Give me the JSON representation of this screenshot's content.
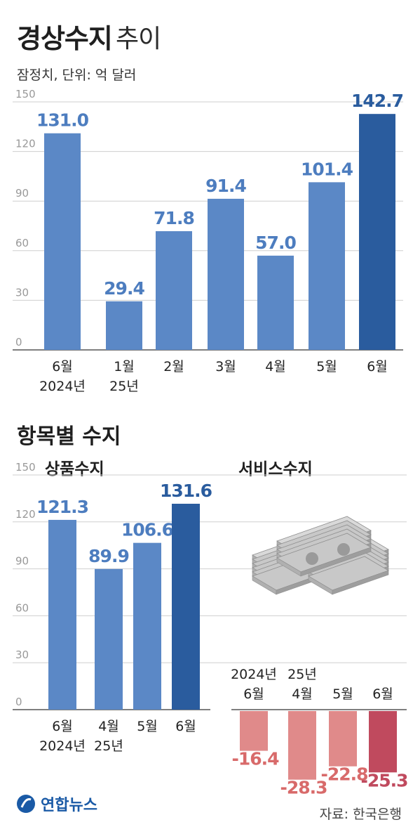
{
  "header": {
    "title": "경상수지",
    "title_suffix": "추이",
    "subtitle": "잠정치, 단위: 억 달러"
  },
  "section2": {
    "title": "항목별 수지",
    "goods_title": "상품수지",
    "service_title": "서비스수지"
  },
  "footer": {
    "logo": "연합뉴스",
    "source": "자료: 한국은행"
  },
  "colors": {
    "bar": "#5b88c6",
    "bar_highlight": "#2a5c9e",
    "label": "#4d7dbf",
    "label_highlight": "#2a5c9e",
    "neg_bar": "#e08a8a",
    "neg_bar_highlight": "#c04a5e",
    "neg_label": "#d86a6a",
    "neg_label_highlight": "#c04a5e",
    "grid": "#cfcfcf",
    "axis_text": "#999999"
  },
  "chart_data": [
    {
      "type": "bar",
      "title": "경상수지 추이",
      "subtitle": "잠정치, 단위: 억 달러",
      "categories": [
        [
          "6월",
          "2024년"
        ],
        [
          "1월",
          "25년"
        ],
        [
          "2월"
        ],
        [
          "3월"
        ],
        [
          "4월"
        ],
        [
          "5월"
        ],
        [
          "6월"
        ]
      ],
      "values": [
        131.0,
        29.4,
        71.8,
        91.4,
        57.0,
        101.4,
        142.7
      ],
      "value_labels": [
        "131.0",
        "29.4",
        "71.8",
        "91.4",
        "57.0",
        "101.4",
        "142.7"
      ],
      "highlight_index": 6,
      "ylim": [
        0,
        150
      ],
      "yticks": [
        "0",
        "30",
        "60",
        "90",
        "120",
        "150"
      ],
      "grid": true
    },
    {
      "type": "bar",
      "title": "상품수지",
      "categories": [
        [
          "6월",
          "2024년"
        ],
        [
          "4월",
          "25년"
        ],
        [
          "5월"
        ],
        [
          "6월"
        ]
      ],
      "values": [
        121.3,
        89.9,
        106.6,
        131.6
      ],
      "value_labels": [
        "121.3",
        "89.9",
        "106.6",
        "131.6"
      ],
      "highlight_index": 3,
      "ylim": [
        0,
        150
      ],
      "yticks": [
        "0",
        "30",
        "60",
        "90",
        "120",
        "150"
      ],
      "grid": true
    },
    {
      "type": "bar",
      "title": "서비스수지",
      "categories": [
        [
          "2024년",
          "6월"
        ],
        [
          "25년",
          "4월"
        ],
        [
          "5월"
        ],
        [
          "6월"
        ]
      ],
      "values": [
        -16.4,
        -28.3,
        -22.8,
        -25.3
      ],
      "value_labels": [
        "-16.4",
        "-28.3",
        "-22.8",
        "-25.3"
      ],
      "highlight_index": 3,
      "ylim": [
        0,
        150
      ]
    }
  ]
}
